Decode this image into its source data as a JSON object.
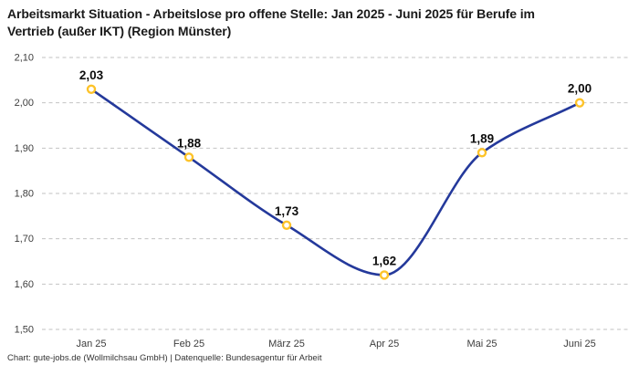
{
  "title": "Arbeitsmarkt Situation - Arbeitslose pro offene Stelle: Jan 2025 - Juni 2025 für Berufe im Vertrieb (außer IKT) (Region Münster)",
  "footer": "Chart: gute-jobs.de (Wollmilchsau GmbH) | Datenquelle: Bundesagentur für Arbeit",
  "colors": {
    "background": "#ffffff",
    "title": "#1a1a1a",
    "line": "#24399b",
    "marker_stroke": "#fdc32a",
    "marker_fill": "#ffffff",
    "grid": "#c2c2c2",
    "tick_label": "#3d3d3d",
    "data_label": "#0d0d0d",
    "footer": "#333333"
  },
  "chart_data": {
    "type": "line",
    "title": "Arbeitsmarkt Situation - Arbeitslose pro offene Stelle: Jan 2025 - Juni 2025 für Berufe im Vertrieb (außer IKT) (Region Münster)",
    "categories": [
      "Jan 25",
      "Feb 25",
      "März 25",
      "Apr 25",
      "Mai 25",
      "Juni 25"
    ],
    "values": [
      2.03,
      1.88,
      1.73,
      1.62,
      1.89,
      2.0
    ],
    "point_labels": [
      "2,03",
      "1,88",
      "1,73",
      "1,62",
      "1,89",
      "2,00"
    ],
    "ylim": [
      1.5,
      2.1
    ],
    "ytick_labels": [
      "1,50",
      "1,60",
      "1,70",
      "1,80",
      "1,90",
      "2,00",
      "2,10"
    ],
    "xlabel": "",
    "ylabel": "",
    "legend": "none",
    "grid": "horizontal-dashed",
    "curve": "monotone-spline"
  }
}
